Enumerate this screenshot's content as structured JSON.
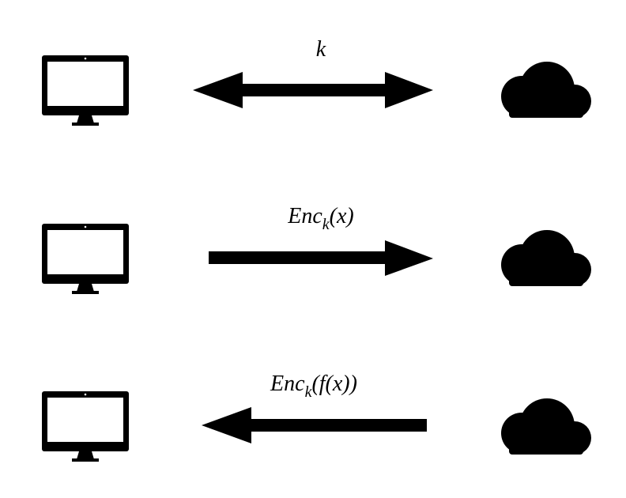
{
  "colors": {
    "ink": "#000000",
    "background": "#ffffff"
  },
  "rows": [
    {
      "client": "monitor-icon",
      "server": "cloud-icon",
      "direction": "both",
      "label": {
        "base": "k",
        "sub": "",
        "tail": ""
      }
    },
    {
      "client": "monitor-icon",
      "server": "cloud-icon",
      "direction": "to-server",
      "label": {
        "base": "Enc",
        "sub": "k",
        "tail": "(x)"
      }
    },
    {
      "client": "monitor-icon",
      "server": "cloud-icon",
      "direction": "to-client",
      "label": {
        "base": "Enc",
        "sub": "k",
        "tail": "(f(x))"
      }
    }
  ]
}
